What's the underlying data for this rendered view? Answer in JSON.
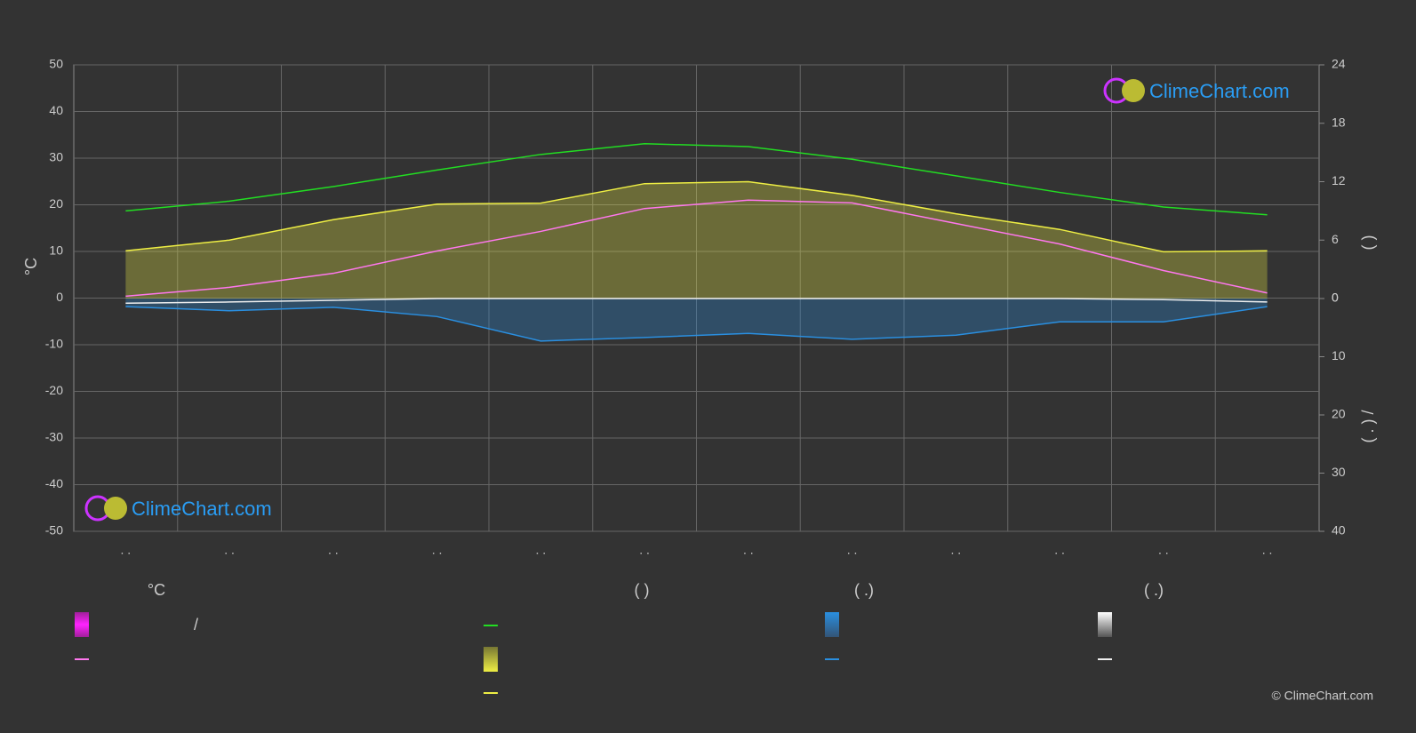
{
  "chart_data": {
    "type": "line",
    "categories": [
      ". .",
      ". .",
      ". .",
      ". .",
      ". .",
      ". .",
      ". .",
      ". .",
      ". .",
      ". .",
      ". .",
      ". ."
    ],
    "ylabel": "°C",
    "y2label": "(        )",
    "y3label": "( . )          /",
    "ylim": [
      -50,
      50
    ],
    "yticks": [
      50,
      40,
      30,
      20,
      10,
      0,
      -10,
      -20,
      -30,
      -40,
      -50
    ],
    "y2lim": [
      0,
      24
    ],
    "y2ticks": [
      24,
      18,
      12,
      6,
      0
    ],
    "y3lim": [
      0,
      40
    ],
    "y3ticks": [
      0,
      10,
      20,
      30,
      40
    ],
    "grid": true,
    "series": [
      {
        "color": "#22dd22",
        "axis": "y2",
        "values": [
          9.0,
          10.0,
          11.5,
          13.2,
          14.8,
          15.9,
          15.6,
          14.3,
          12.6,
          10.9,
          9.4,
          8.6
        ]
      },
      {
        "color": "#eeee44",
        "axis": "y2",
        "area": true,
        "values": [
          4.9,
          6.0,
          8.1,
          9.7,
          9.8,
          11.8,
          12.0,
          10.6,
          8.7,
          7.1,
          4.8,
          4.9
        ]
      },
      {
        "color": "#ff77ee",
        "values": [
          0.4,
          2.3,
          5.3,
          10.1,
          14.3,
          19.2,
          21.0,
          20.4,
          16.0,
          11.6,
          5.9,
          1.1
        ]
      },
      {
        "color": "#2a8fe0",
        "axis": "y3",
        "area": true,
        "values": [
          1.4,
          2.1,
          1.5,
          3.1,
          7.3,
          6.7,
          6.0,
          7.0,
          6.3,
          4.0,
          4.0,
          1.4
        ]
      },
      {
        "color": "#eeeeee",
        "axis": "y3",
        "values": [
          0.8,
          0.6,
          0.3,
          0,
          0,
          0,
          0,
          0,
          0,
          0,
          0.2,
          0.6
        ]
      }
    ],
    "legend_headers": [
      "°C",
      "(          )",
      "(   .)",
      "(   .)"
    ],
    "legend_text": "/",
    "watermark": "ClimeChart.com",
    "copyright": "© ClimeChart.com"
  }
}
